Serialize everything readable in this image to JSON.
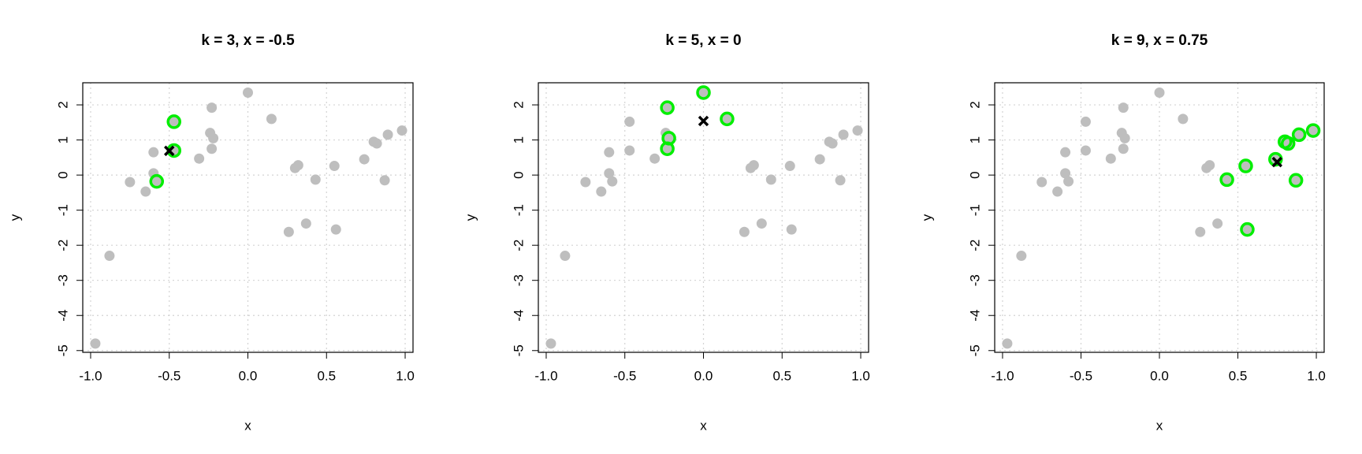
{
  "chart_data": [
    {
      "type": "scatter",
      "title": "k = 3, x = -0.5",
      "xlabel": "x",
      "ylabel": "y",
      "x": [
        -0.97,
        -0.88,
        -0.75,
        -0.65,
        -0.6,
        -0.6,
        -0.58,
        -0.47,
        -0.47,
        -0.31,
        -0.24,
        -0.22,
        -0.23,
        -0.23,
        0,
        0.15,
        0.3,
        0.32,
        0.26,
        0.37,
        0.43,
        0.55,
        0.56,
        0.74,
        0.8,
        0.82,
        0.87,
        0.89,
        0.98
      ],
      "y": [
        -4.8,
        -2.3,
        -0.2,
        -0.47,
        0.65,
        0.05,
        -0.18,
        1.52,
        0.7,
        0.47,
        1.2,
        1.05,
        0.75,
        1.92,
        2.35,
        1.6,
        0.2,
        0.28,
        -1.62,
        -1.38,
        -0.13,
        0.26,
        -1.55,
        0.45,
        0.95,
        0.9,
        -0.15,
        1.15,
        1.27
      ],
      "color": "#bebebe",
      "neighbors": [
        7,
        8,
        6
      ],
      "neighbor_color": "#00ee00",
      "query": {
        "x": -0.5,
        "y": 0.69
      },
      "query_color": "#000000",
      "xlim": [
        -1.05,
        1.05
      ],
      "ylim": [
        -5.05,
        2.63
      ],
      "xticks": [
        {
          "value": -1,
          "label": "-1.0"
        },
        {
          "value": -0.5,
          "label": "-0.5"
        },
        {
          "value": 0,
          "label": "0.0"
        },
        {
          "value": 0.5,
          "label": "0.5"
        },
        {
          "value": 1,
          "label": "1.0"
        }
      ],
      "yticks": [
        -5,
        -4,
        -3,
        -2,
        -1,
        0,
        1,
        2
      ],
      "grid": true
    },
    {
      "type": "scatter",
      "title": "k = 5, x = 0",
      "xlabel": "x",
      "ylabel": "y",
      "x": [
        -0.97,
        -0.88,
        -0.75,
        -0.65,
        -0.6,
        -0.6,
        -0.58,
        -0.47,
        -0.47,
        -0.31,
        -0.24,
        -0.22,
        -0.23,
        -0.23,
        0,
        0.15,
        0.3,
        0.32,
        0.26,
        0.37,
        0.43,
        0.55,
        0.56,
        0.74,
        0.8,
        0.82,
        0.87,
        0.89,
        0.98
      ],
      "y": [
        -4.8,
        -2.3,
        -0.2,
        -0.47,
        0.65,
        0.05,
        -0.18,
        1.52,
        0.7,
        0.47,
        1.2,
        1.05,
        0.75,
        1.92,
        2.35,
        1.6,
        0.2,
        0.28,
        -1.62,
        -1.38,
        -0.13,
        0.26,
        -1.55,
        0.45,
        0.95,
        0.9,
        -0.15,
        1.15,
        1.27
      ],
      "color": "#bebebe",
      "neighbors": [
        13,
        11,
        12,
        14,
        15
      ],
      "neighbor_color": "#00ee00",
      "query": {
        "x": 0,
        "y": 1.54
      },
      "query_color": "#000000",
      "xlim": [
        -1.05,
        1.05
      ],
      "ylim": [
        -5.05,
        2.63
      ],
      "xticks": [
        {
          "value": -1,
          "label": "-1.0"
        },
        {
          "value": -0.5,
          "label": "-0.5"
        },
        {
          "value": 0,
          "label": "0.0"
        },
        {
          "value": 0.5,
          "label": "0.5"
        },
        {
          "value": 1,
          "label": "1.0"
        }
      ],
      "yticks": [
        -5,
        -4,
        -3,
        -2,
        -1,
        0,
        1,
        2
      ],
      "grid": true
    },
    {
      "type": "scatter",
      "title": "k = 9, x = 0.75",
      "xlabel": "x",
      "ylabel": "y",
      "x": [
        -0.97,
        -0.88,
        -0.75,
        -0.65,
        -0.6,
        -0.6,
        -0.58,
        -0.47,
        -0.47,
        -0.31,
        -0.24,
        -0.22,
        -0.23,
        -0.23,
        0,
        0.15,
        0.3,
        0.32,
        0.26,
        0.37,
        0.43,
        0.55,
        0.56,
        0.74,
        0.8,
        0.82,
        0.87,
        0.89,
        0.98
      ],
      "y": [
        -4.8,
        -2.3,
        -0.2,
        -0.47,
        0.65,
        0.05,
        -0.18,
        1.52,
        0.7,
        0.47,
        1.2,
        1.05,
        0.75,
        1.92,
        2.35,
        1.6,
        0.2,
        0.28,
        -1.62,
        -1.38,
        -0.13,
        0.26,
        -1.55,
        0.45,
        0.95,
        0.9,
        -0.15,
        1.15,
        1.27
      ],
      "color": "#bebebe",
      "neighbors": [
        23,
        24,
        25,
        27,
        28,
        26,
        21,
        20,
        22
      ],
      "neighbor_color": "#00ee00",
      "query": {
        "x": 0.75,
        "y": 0.37
      },
      "query_color": "#000000",
      "xlim": [
        -1.05,
        1.05
      ],
      "ylim": [
        -5.05,
        2.63
      ],
      "xticks": [
        {
          "value": -1,
          "label": "-1.0"
        },
        {
          "value": -0.5,
          "label": "-0.5"
        },
        {
          "value": 0,
          "label": "0.0"
        },
        {
          "value": 0.5,
          "label": "0.5"
        },
        {
          "value": 1,
          "label": "1.0"
        }
      ],
      "yticks": [
        -5,
        -4,
        -3,
        -2,
        -1,
        0,
        1,
        2
      ],
      "grid": true
    }
  ]
}
